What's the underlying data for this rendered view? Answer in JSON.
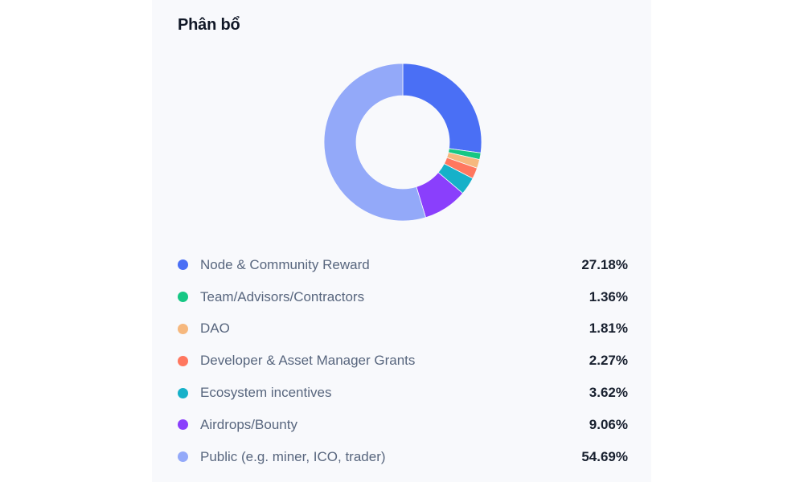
{
  "panel": {
    "title": "Phân bổ"
  },
  "chart_data": {
    "type": "pie",
    "subtype": "donut",
    "title": "Phân bổ",
    "categories": [
      "Node & Community Reward",
      "Team/Advisors/Contractors",
      "DAO",
      "Developer & Asset Manager Grants",
      "Ecosystem incentives",
      "Airdrops/Bounty",
      "Public (e.g. miner, ICO, trader)"
    ],
    "values": [
      27.18,
      1.36,
      1.81,
      2.27,
      3.62,
      9.06,
      54.69
    ],
    "colors": [
      "#4a6ff5",
      "#16c784",
      "#f6b87e",
      "#ff775f",
      "#16b1c9",
      "#8a3ffc",
      "#93a9f9"
    ],
    "legend_position": "bottom",
    "start_angle": "top, clockwise"
  },
  "legend": {
    "items": [
      {
        "label": "Node & Community Reward",
        "value": "27.18%",
        "color": "#4a6ff5"
      },
      {
        "label": "Team/Advisors/Contractors",
        "value": "1.36%",
        "color": "#16c784"
      },
      {
        "label": "DAO",
        "value": "1.81%",
        "color": "#f6b87e"
      },
      {
        "label": "Developer & Asset Manager Grants",
        "value": "2.27%",
        "color": "#ff775f"
      },
      {
        "label": "Ecosystem incentives",
        "value": "3.62%",
        "color": "#16b1c9"
      },
      {
        "label": "Airdrops/Bounty",
        "value": "9.06%",
        "color": "#8a3ffc"
      },
      {
        "label": "Public (e.g. miner, ICO, trader)",
        "value": "54.69%",
        "color": "#93a9f9"
      }
    ]
  }
}
